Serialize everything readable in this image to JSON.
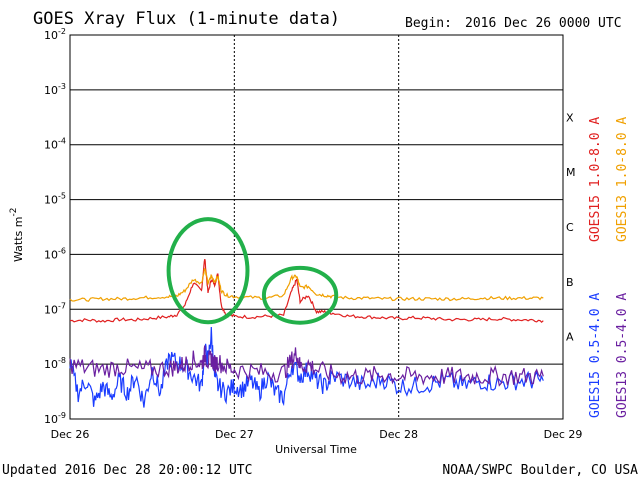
{
  "header": {
    "title": "GOES Xray Flux (1-minute data)",
    "begin_label": "Begin:",
    "begin_value": "2016 Dec 26 0000 UTC"
  },
  "footer": {
    "updated": "Updated 2016 Dec 28 20:00:12 UTC",
    "credit": "NOAA/SWPC Boulder, CO USA"
  },
  "colors": {
    "goes15_long": "#e02020",
    "goes13_long": "#f0a000",
    "goes15_short": "#1a3cff",
    "goes13_short": "#6a1fa0",
    "highlight": "#22b04a"
  },
  "chart_data": {
    "type": "line",
    "title": "GOES Xray Flux (1-minute data)",
    "xlabel": "Universal Time",
    "ylabel": "Watts m",
    "ylabel_exponent": "-2",
    "y_scale": "log",
    "ylim": [
      1e-09,
      0.01
    ],
    "y_ticks": [
      {
        "base": "10",
        "exp": "-2",
        "value": 0.01
      },
      {
        "base": "10",
        "exp": "-3",
        "value": 0.001
      },
      {
        "base": "10",
        "exp": "-4",
        "value": 0.0001
      },
      {
        "base": "10",
        "exp": "-5",
        "value": 1e-05
      },
      {
        "base": "10",
        "exp": "-6",
        "value": 1e-06
      },
      {
        "base": "10",
        "exp": "-7",
        "value": 1e-07
      },
      {
        "base": "10",
        "exp": "-8",
        "value": 1e-08
      },
      {
        "base": "10",
        "exp": "-9",
        "value": 1e-09
      }
    ],
    "xlim": [
      "2016-12-26 00:00",
      "2016-12-29 00:00"
    ],
    "x_ticks": [
      {
        "label": "Dec 26",
        "value": "2016-12-26"
      },
      {
        "label": "Dec 27",
        "value": "2016-12-27"
      },
      {
        "label": "Dec 28",
        "value": "2016-12-28"
      },
      {
        "label": "Dec 29",
        "value": "2016-12-29"
      }
    ],
    "flare_classes": [
      {
        "label": "X",
        "min": 0.0001,
        "max": 0.001
      },
      {
        "label": "M",
        "min": 1e-05,
        "max": 0.0001
      },
      {
        "label": "C",
        "min": 1e-06,
        "max": 1e-05
      },
      {
        "label": "B",
        "min": 1e-07,
        "max": 1e-06
      },
      {
        "label": "A",
        "min": 1e-08,
        "max": 1e-07
      }
    ],
    "grid": true,
    "legend_right": [
      {
        "text": "GOES15 1.0-8.0 A",
        "color_key": "goes15_long"
      },
      {
        "text": "GOES13 1.0-8.0 A",
        "color_key": "goes13_long"
      },
      {
        "text": "GOES15 0.5-4.0 A",
        "color_key": "goes15_short"
      },
      {
        "text": "GOES13 0.5-4.0 A",
        "color_key": "goes13_short"
      }
    ],
    "series": [
      {
        "name": "GOES15 1.0-8.0 A",
        "color_key": "goes15_long",
        "x": [
          0.0,
          0.1,
          0.2,
          0.3,
          0.4,
          0.5,
          0.6,
          0.65,
          0.7,
          0.75,
          0.8,
          0.82,
          0.84,
          0.86,
          0.88,
          0.9,
          0.92,
          0.95,
          1.0,
          1.1,
          1.2,
          1.3,
          1.35,
          1.38,
          1.4,
          1.45,
          1.5,
          1.55,
          1.6,
          1.7,
          1.8,
          1.9,
          2.0,
          2.1,
          2.2,
          2.3,
          2.4,
          2.5,
          2.6,
          2.7,
          2.8,
          2.88
        ],
        "y": [
          6.2e-08,
          6.4e-08,
          6.1e-08,
          6.5e-08,
          6.4e-08,
          6.9e-08,
          7.3e-08,
          8e-08,
          1.2e-07,
          3e-07,
          2.2e-07,
          8.5e-07,
          2e-07,
          3.5e-07,
          2.8e-07,
          4.5e-07,
          1.2e-07,
          8e-08,
          7.5e-08,
          7.2e-08,
          7.5e-08,
          7.8e-08,
          2.2e-07,
          3.5e-07,
          1.4e-07,
          1.8e-07,
          9e-08,
          9e-08,
          8.5e-08,
          7.5e-08,
          7.3e-08,
          7e-08,
          6.8e-08,
          7e-08,
          6.8e-08,
          6.5e-08,
          6.5e-08,
          6.5e-08,
          6.7e-08,
          6.5e-08,
          6.4e-08,
          6.2e-08
        ]
      },
      {
        "name": "GOES13 1.0-8.0 A",
        "color_key": "goes13_long",
        "x": [
          0.0,
          0.1,
          0.2,
          0.3,
          0.4,
          0.5,
          0.6,
          0.65,
          0.7,
          0.75,
          0.8,
          0.82,
          0.84,
          0.86,
          0.88,
          0.9,
          0.92,
          0.95,
          1.0,
          1.1,
          1.2,
          1.3,
          1.35,
          1.38,
          1.4,
          1.45,
          1.5,
          1.55,
          1.6,
          1.7,
          1.8,
          1.9,
          2.0,
          2.1,
          2.2,
          2.3,
          2.4,
          2.5,
          2.6,
          2.7,
          2.8,
          2.88
        ],
        "y": [
          1.5e-07,
          1.5e-07,
          1.55e-07,
          1.55e-07,
          1.6e-07,
          1.65e-07,
          1.7e-07,
          1.75e-07,
          2.2e-07,
          3.5e-07,
          3e-07,
          5.5e-07,
          3e-07,
          4e-07,
          3.2e-07,
          4e-07,
          2.2e-07,
          1.8e-07,
          1.7e-07,
          1.65e-07,
          1.6e-07,
          1.8e-07,
          3.8e-07,
          4e-07,
          2.5e-07,
          2.6e-07,
          1.9e-07,
          1.8e-07,
          1.7e-07,
          1.6e-07,
          1.6e-07,
          1.55e-07,
          1.55e-07,
          1.55e-07,
          1.55e-07,
          1.55e-07,
          1.55e-07,
          1.6e-07,
          1.6e-07,
          1.6e-07,
          1.6e-07,
          1.6e-07
        ]
      },
      {
        "name": "GOES15 0.5-4.0 A",
        "color_key": "goes15_short",
        "x": [
          0.0,
          0.05,
          0.1,
          0.15,
          0.2,
          0.25,
          0.3,
          0.35,
          0.4,
          0.45,
          0.5,
          0.55,
          0.6,
          0.65,
          0.7,
          0.75,
          0.8,
          0.82,
          0.84,
          0.86,
          0.88,
          0.9,
          0.95,
          1.0,
          1.05,
          1.1,
          1.15,
          1.2,
          1.25,
          1.3,
          1.35,
          1.4,
          1.45,
          1.5,
          1.55,
          1.6,
          1.7,
          1.8,
          1.9,
          2.0,
          2.1,
          2.2,
          2.3,
          2.4,
          2.5,
          2.6,
          2.7,
          2.8,
          2.88
        ],
        "y": [
          1e-08,
          3e-09,
          5e-09,
          2e-09,
          4e-09,
          2.5e-09,
          5e-09,
          3e-09,
          6e-09,
          2e-09,
          8e-09,
          3e-09,
          1.3e-08,
          1.1e-08,
          9e-09,
          6e-09,
          4e-09,
          1.8e-08,
          1.2e-08,
          3.5e-08,
          6e-09,
          4e-09,
          3e-09,
          4e-09,
          3.5e-09,
          5e-09,
          3e-09,
          6e-09,
          3e-09,
          2.5e-09,
          1e-08,
          6e-09,
          8e-09,
          5e-09,
          4e-09,
          6e-09,
          5e-09,
          4e-09,
          5.5e-09,
          4e-09,
          4e-09,
          4.5e-09,
          5e-09,
          4e-09,
          5e-09,
          4.5e-09,
          5e-09,
          5e-09,
          5e-09
        ]
      },
      {
        "name": "GOES13 0.5-4.0 A",
        "color_key": "goes13_short",
        "x": [
          0.0,
          0.1,
          0.2,
          0.3,
          0.4,
          0.5,
          0.6,
          0.65,
          0.7,
          0.75,
          0.8,
          0.82,
          0.84,
          0.86,
          0.88,
          0.9,
          0.95,
          1.0,
          1.1,
          1.2,
          1.3,
          1.35,
          1.38,
          1.4,
          1.45,
          1.5,
          1.6,
          1.7,
          1.8,
          1.9,
          2.0,
          2.1,
          2.2,
          2.3,
          2.4,
          2.5,
          2.6,
          2.7,
          2.8,
          2.88
        ],
        "y": [
          1e-08,
          8.5e-09,
          8e-09,
          9e-09,
          8e-09,
          8e-09,
          8.5e-09,
          9e-09,
          1e-08,
          1.2e-08,
          1e-08,
          1.5e-08,
          1.1e-08,
          1.3e-08,
          1e-08,
          1.1e-08,
          9e-09,
          8e-09,
          7.5e-09,
          7e-09,
          7e-09,
          1.2e-08,
          1.6e-08,
          9e-09,
          1e-08,
          8e-09,
          6.5e-09,
          6e-09,
          6e-09,
          6.5e-09,
          6e-09,
          6e-09,
          6e-09,
          6e-09,
          6e-09,
          6e-09,
          6e-09,
          6e-09,
          6e-09,
          6e-09
        ]
      }
    ],
    "annotations": [
      {
        "type": "ellipse",
        "color_key": "highlight",
        "cx": 0.84,
        "cy": 3.5e-07,
        "rx_days": 0.24,
        "ry_decades_up": 1.1,
        "ry_decades_down": 0.78
      },
      {
        "type": "ellipse",
        "color_key": "highlight",
        "cx": 1.4,
        "cy": 1.8e-07,
        "rx_days": 0.22,
        "ry_decades_up": 0.5,
        "ry_decades_down": 0.5
      }
    ]
  }
}
